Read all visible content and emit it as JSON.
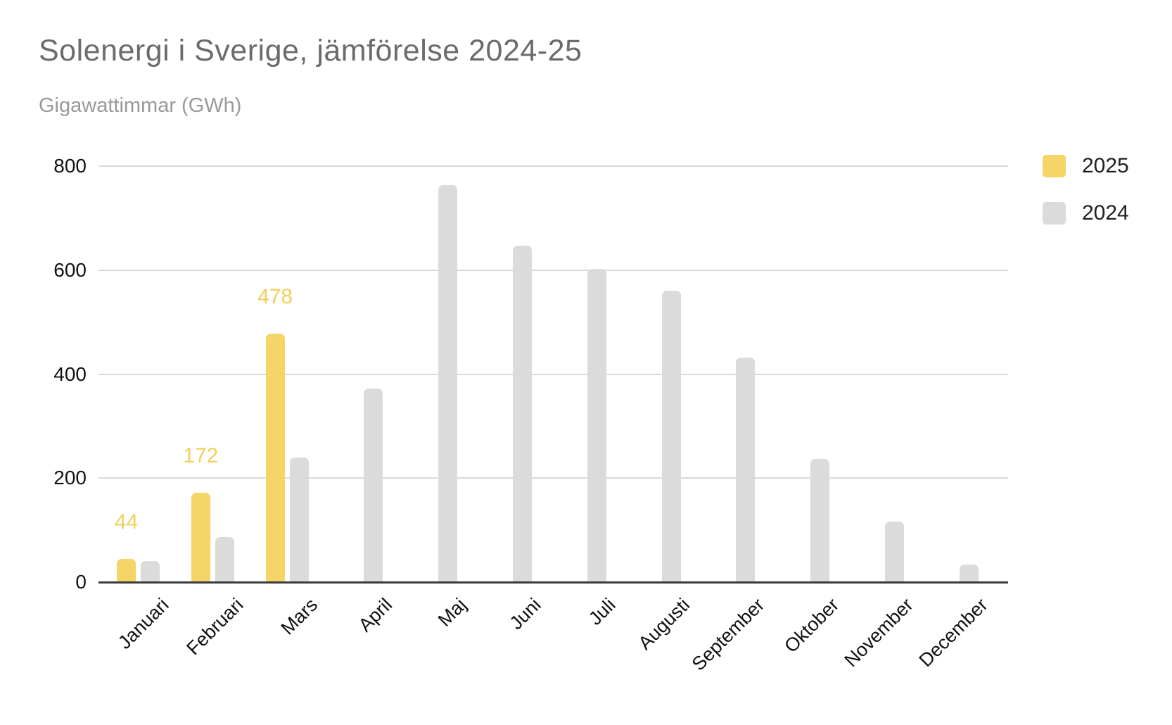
{
  "title": "Solenergi i Sverige, jämförelse 2024-25",
  "subtitle": "Gigawattimmar (GWh)",
  "legend": {
    "items": [
      {
        "label": "2025",
        "color": "#F5D567"
      },
      {
        "label": "2024",
        "color": "#DBDBDB"
      }
    ]
  },
  "chart_data": {
    "type": "bar",
    "title": "Solenergi i Sverige, jämförelse 2024-25",
    "subtitle": "Gigawattimmar (GWh)",
    "ylabel": "Gigawattimmar (GWh)",
    "categories": [
      "Januari",
      "Februari",
      "Mars",
      "April",
      "Maj",
      "Juni",
      "Juli",
      "Augusti",
      "September",
      "Oktober",
      "November",
      "December"
    ],
    "series": [
      {
        "name": "2025",
        "color": "#F5D567",
        "values": [
          44,
          172,
          478,
          null,
          null,
          null,
          null,
          null,
          null,
          null,
          null,
          null
        ],
        "show_data_labels": true
      },
      {
        "name": "2024",
        "color": "#DBDBDB",
        "values": [
          41,
          87,
          240,
          372,
          763,
          647,
          603,
          560,
          432,
          237,
          116,
          34
        ],
        "show_data_labels": false
      }
    ],
    "ylim": [
      0,
      800
    ],
    "yticks": [
      0,
      200,
      400,
      600,
      800
    ],
    "grid": "horizontal",
    "legend_position": "top-right",
    "gridline_color": "#D9D9D9",
    "axis_color": "#3C3C3C",
    "data_label_color": "#F2CF5B"
  },
  "colors": {
    "background": "#FFFFFF",
    "title_text": "#6B6B6B",
    "subtitle_text": "#999999",
    "axis_text": "#131313"
  }
}
